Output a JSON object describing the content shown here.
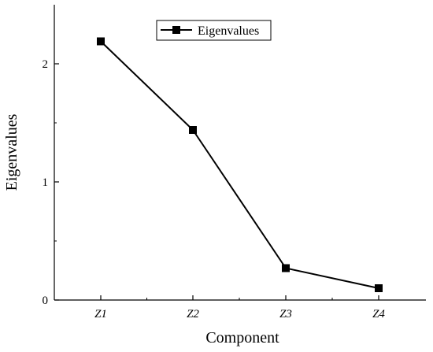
{
  "chart_data": {
    "type": "line",
    "categories": [
      "Z1",
      "Z2",
      "Z3",
      "Z4"
    ],
    "series": [
      {
        "name": "Eigenvalues",
        "values": [
          2.19,
          1.44,
          0.27,
          0.1
        ]
      }
    ],
    "xlabel": "Component",
    "ylabel": "Eigenvalues",
    "ylim": [
      0,
      2.5
    ],
    "yticks": [
      "0",
      "1",
      "2"
    ],
    "grid": false,
    "legend_position": "top-center",
    "marker": "square",
    "line_color": "#000000"
  }
}
